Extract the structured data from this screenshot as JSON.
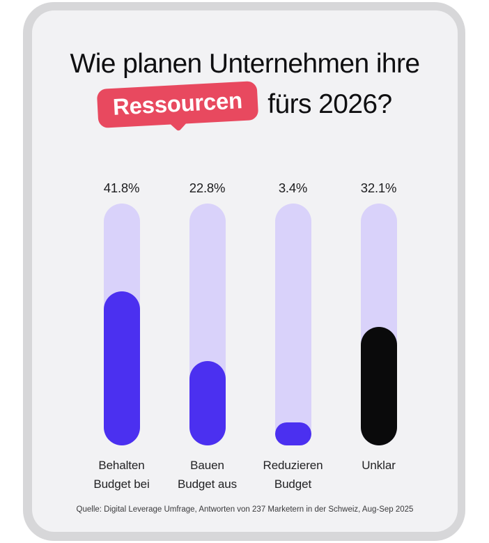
{
  "title": {
    "line1": "Wie planen Unternehmen ihre",
    "highlight": "Ressourcen",
    "line2_rest": "fürs 2026?"
  },
  "chart_data": {
    "type": "bar",
    "title": "Wie planen Unternehmen ihre Ressourcen fürs 2026?",
    "orientation": "vertical",
    "categories": [
      "Behalten\nBudget bei",
      "Bauen\nBudget aus",
      "Reduzieren\nBudget",
      "Unklar"
    ],
    "values": [
      41.8,
      22.8,
      3.4,
      32.1
    ],
    "value_labels": [
      "41.8%",
      "22.8%",
      "3.4%",
      "32.1%"
    ],
    "unit": "%",
    "ylim": [
      0,
      65.6
    ],
    "grid": false,
    "legend": false,
    "bar_colors": [
      "#4b30f0",
      "#4b30f0",
      "#4b30f0",
      "#0a0a0b"
    ],
    "track_color": "#d9d2fa"
  },
  "footer": {
    "source": "Quelle: Digital Leverage Umfrage, Antworten von 237 Marketern in der Schweiz, Aug-Sep 2025"
  },
  "colors": {
    "accent": "#e8495f",
    "card_bg": "#f2f2f4",
    "frame": "#d7d7d9",
    "title_text": "#0f0f11"
  }
}
